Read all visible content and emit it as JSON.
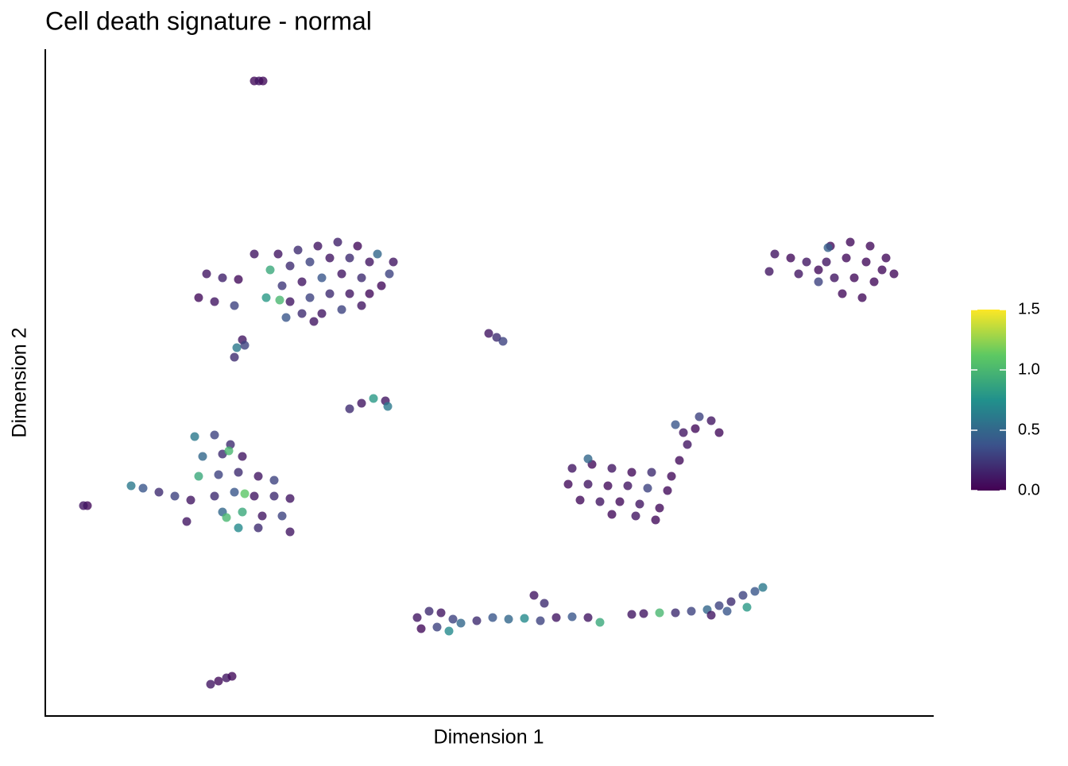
{
  "chart_data": {
    "type": "scatter",
    "title": "Cell death signature - normal",
    "x_label": "Dimension 1",
    "y_label": "Dimension 2",
    "xlim": [
      57,
      1175
    ],
    "ylim": [
      58,
      898
    ],
    "colorbar": {
      "lim": [
        0,
        1.5
      ],
      "ticks": [
        {
          "value": 0,
          "label": "0.0"
        },
        {
          "value": 0.5,
          "label": "0.5"
        },
        {
          "value": 1,
          "label": "1.0"
        },
        {
          "value": 1.5,
          "label": "1.5"
        }
      ]
    },
    "x": [
      320,
      326,
      331,
      350,
      375,
      400,
      425,
      450,
      475,
      495,
      340,
      365,
      390,
      415,
      440,
      465,
      490,
      355,
      380,
      405,
      430,
      455,
      480,
      365,
      390,
      415,
      440,
      465,
      380,
      405,
      430,
      455,
      395,
      260,
      280,
      300,
      320,
      250,
      270,
      295,
      335,
      352,
      360,
      305,
      298,
      295,
      308,
      440,
      455,
      470,
      485,
      488,
      615,
      625,
      633,
      1045,
      1042,
      1070,
      1095,
      1115,
      1125,
      1040,
      1065,
      1090,
      1110,
      1050,
      1075,
      1100,
      1060,
      1085,
      975,
      995,
      1015,
      1030,
      968,
      1005,
      1030,
      245,
      270,
      290,
      255,
      280,
      305,
      250,
      275,
      300,
      325,
      345,
      270,
      295,
      320,
      345,
      365,
      280,
      305,
      330,
      355,
      300,
      325,
      365,
      165,
      180,
      200,
      220,
      240,
      235,
      110,
      105,
      288,
      308,
      285,
      720,
      745,
      770,
      795,
      820,
      845,
      715,
      740,
      765,
      790,
      815,
      840,
      730,
      755,
      780,
      805,
      830,
      770,
      800,
      825,
      855,
      865,
      875,
      895,
      905,
      880,
      850,
      860,
      740,
      525,
      540,
      555,
      570,
      530,
      550,
      565,
      580,
      600,
      620,
      640,
      660,
      680,
      700,
      720,
      740,
      755,
      672,
      685,
      795,
      810,
      830,
      850,
      870,
      890,
      905,
      920,
      935,
      950,
      960,
      940,
      915,
      895,
      265,
      275,
      285,
      292
    ],
    "y": [
      858,
      858,
      858,
      640,
      645,
      650,
      655,
      650,
      640,
      630,
      620,
      625,
      630,
      635,
      635,
      630,
      615,
      600,
      605,
      610,
      615,
      610,
      600,
      580,
      585,
      590,
      590,
      590,
      565,
      565,
      570,
      575,
      555,
      615,
      610,
      608,
      640,
      585,
      580,
      575,
      585,
      582,
      560,
      532,
      522,
      510,
      525,
      445,
      452,
      458,
      455,
      448,
      540,
      535,
      530,
      650,
      648,
      655,
      650,
      635,
      615,
      630,
      635,
      630,
      620,
      610,
      610,
      605,
      590,
      585,
      640,
      635,
      630,
      620,
      618,
      615,
      605,
      410,
      412,
      400,
      385,
      388,
      385,
      360,
      362,
      365,
      360,
      355,
      335,
      340,
      335,
      335,
      332,
      315,
      315,
      310,
      310,
      295,
      295,
      290,
      348,
      345,
      340,
      335,
      330,
      303,
      323,
      323,
      392,
      338,
      308,
      370,
      375,
      370,
      365,
      365,
      360,
      350,
      350,
      348,
      348,
      345,
      342,
      330,
      328,
      328,
      325,
      320,
      312,
      310,
      305,
      380,
      400,
      420,
      430,
      415,
      435,
      425,
      415,
      382,
      182,
      190,
      188,
      180,
      168,
      170,
      165,
      175,
      178,
      182,
      180,
      181,
      178,
      182,
      183,
      182,
      176,
      210,
      200,
      186,
      187,
      188,
      188,
      190,
      192,
      197,
      202,
      210,
      215,
      220,
      195,
      190,
      185,
      98,
      102,
      106,
      108
    ],
    "color_values": [
      0.05,
      0.1,
      0.05,
      0.1,
      0.2,
      0.1,
      0.15,
      0.05,
      0.5,
      0.1,
      0.9,
      0.2,
      0.3,
      0.1,
      0.2,
      0.1,
      0.3,
      0.25,
      0.1,
      0.4,
      0.1,
      0.2,
      0.05,
      0.1,
      0.3,
      0.2,
      0.1,
      0.05,
      0.2,
      0.1,
      0.3,
      0.1,
      0.1,
      0.1,
      0.15,
      0.05,
      0.1,
      0.05,
      0.1,
      0.3,
      0.8,
      1.0,
      0.4,
      0.1,
      0.6,
      0.2,
      0.3,
      0.2,
      0.1,
      0.8,
      0.1,
      0.6,
      0.1,
      0.2,
      0.3,
      0.05,
      0.45,
      0.05,
      0.05,
      0.05,
      0.05,
      0.1,
      0.05,
      0.05,
      0.05,
      0.1,
      0.05,
      0.05,
      0.05,
      0.05,
      0.1,
      0.05,
      0.1,
      0.05,
      0.1,
      0.1,
      0.3,
      0.6,
      0.3,
      0.2,
      0.5,
      0.2,
      0.1,
      0.9,
      0.3,
      0.2,
      0.1,
      0.3,
      0.2,
      0.4,
      0.1,
      0.2,
      0.1,
      0.5,
      0.9,
      0.1,
      0.3,
      0.7,
      0.2,
      0.1,
      0.6,
      0.4,
      0.2,
      0.3,
      0.1,
      0.1,
      0.05,
      0.1,
      1.0,
      1.1,
      1.0,
      0.1,
      0.05,
      0.1,
      0.05,
      0.2,
      0.05,
      0.05,
      0.1,
      0.05,
      0.1,
      0.3,
      0.05,
      0.05,
      0.1,
      0.05,
      0.1,
      0.05,
      0.05,
      0.1,
      0.05,
      0.05,
      0.1,
      0.05,
      0.1,
      0.05,
      0.3,
      0.4,
      0.1,
      0.5,
      0.1,
      0.2,
      0.1,
      0.3,
      0.05,
      0.3,
      0.7,
      0.5,
      0.2,
      0.4,
      0.5,
      0.7,
      0.3,
      0.1,
      0.4,
      0.1,
      0.9,
      0.1,
      0.2,
      0.1,
      0.1,
      1.0,
      0.2,
      0.3,
      0.5,
      0.3,
      0.2,
      0.3,
      0.4,
      0.6,
      0.8,
      0.4,
      0.1,
      0.1,
      0.05,
      0.1,
      0.05
    ]
  }
}
